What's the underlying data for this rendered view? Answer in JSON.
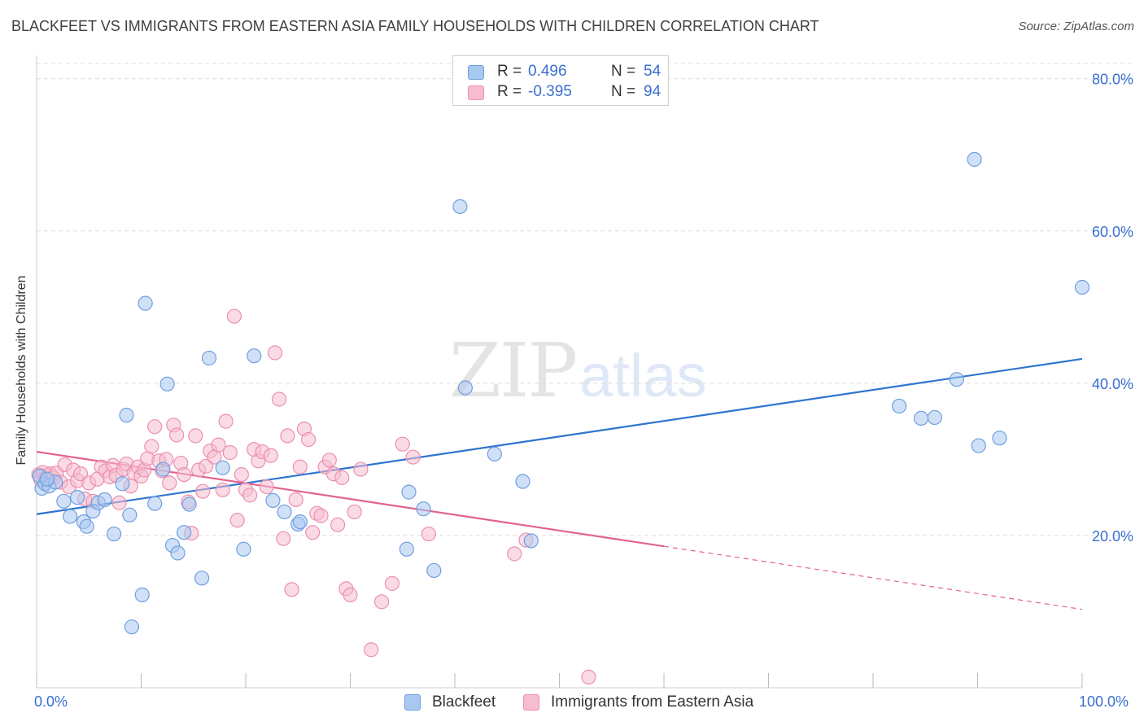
{
  "header": {
    "title": "BLACKFEET VS IMMIGRANTS FROM EASTERN ASIA FAMILY HOUSEHOLDS WITH CHILDREN CORRELATION CHART",
    "source": "Source: ZipAtlas.com"
  },
  "watermark": {
    "zip": "ZIP",
    "atlas": "atlas"
  },
  "legend_top": {
    "rows": [
      {
        "r_label": "R =",
        "r_value": "0.496",
        "n_label": "N =",
        "n_value": "54"
      },
      {
        "r_label": "R =",
        "r_value": "-0.395",
        "n_label": "N =",
        "n_value": "94"
      }
    ]
  },
  "legend_bottom": {
    "items": [
      "Blackfeet",
      "Immigrants from Eastern Asia"
    ]
  },
  "colors": {
    "blackfeet_fill": "#a9c8f0",
    "blackfeet_stroke": "#6f9fe0",
    "blackfeet_line": "#2f74d0",
    "eastern_asia_fill": "#f6bdd0",
    "eastern_asia_stroke": "#ec8fb0",
    "eastern_asia_line": "#e2628f",
    "axis_label": "#3a6fcf",
    "grid": "#dcdcdc"
  },
  "chart_data": {
    "type": "scatter",
    "title": "BLACKFEET VS IMMIGRANTS FROM EASTERN ASIA FAMILY HOUSEHOLDS WITH CHILDREN CORRELATION CHART",
    "xlabel": "",
    "ylabel": "Family Households with Children",
    "xlim": [
      0,
      100
    ],
    "ylim": [
      0,
      82
    ],
    "x_tick_labels": [
      "0.0%",
      "100.0%"
    ],
    "y_ticks": [
      20,
      40,
      60,
      80
    ],
    "y_tick_labels": [
      "20.0%",
      "40.0%",
      "60.0%",
      "80.0%"
    ],
    "grid": "horizontal dashed",
    "legend_position": "top-center and bottom-center",
    "series": [
      {
        "name": "Blackfeet",
        "r": 0.496,
        "n": 54,
        "trend": {
          "x": [
            0,
            100
          ],
          "y": [
            22.8,
            43.2
          ],
          "dashed_after": null
        },
        "points": [
          [
            0.3,
            27.8
          ],
          [
            0.5,
            26.2
          ],
          [
            0.8,
            26.8
          ],
          [
            1.2,
            26.5
          ],
          [
            1.8,
            27.0
          ],
          [
            2.6,
            24.5
          ],
          [
            3.2,
            22.5
          ],
          [
            3.9,
            25.0
          ],
          [
            4.5,
            21.8
          ],
          [
            4.8,
            21.2
          ],
          [
            5.4,
            23.2
          ],
          [
            5.9,
            24.3
          ],
          [
            6.5,
            24.7
          ],
          [
            7.4,
            20.2
          ],
          [
            8.2,
            26.8
          ],
          [
            8.6,
            35.8
          ],
          [
            8.9,
            22.7
          ],
          [
            9.1,
            8.0
          ],
          [
            10.1,
            12.2
          ],
          [
            10.4,
            50.5
          ],
          [
            11.3,
            24.2
          ],
          [
            12.1,
            28.7
          ],
          [
            12.5,
            39.9
          ],
          [
            13.0,
            18.7
          ],
          [
            13.5,
            17.7
          ],
          [
            14.1,
            20.4
          ],
          [
            14.6,
            24.1
          ],
          [
            15.8,
            14.4
          ],
          [
            16.5,
            43.3
          ],
          [
            17.8,
            28.9
          ],
          [
            19.8,
            18.2
          ],
          [
            20.8,
            43.6
          ],
          [
            22.6,
            24.6
          ],
          [
            23.7,
            23.1
          ],
          [
            25.0,
            21.5
          ],
          [
            25.2,
            21.8
          ],
          [
            35.4,
            18.2
          ],
          [
            35.6,
            25.7
          ],
          [
            37.0,
            23.5
          ],
          [
            38.0,
            15.4
          ],
          [
            40.5,
            63.2
          ],
          [
            41.0,
            39.4
          ],
          [
            43.8,
            30.7
          ],
          [
            46.5,
            27.1
          ],
          [
            47.3,
            19.3
          ],
          [
            82.5,
            37.0
          ],
          [
            84.6,
            35.4
          ],
          [
            85.9,
            35.5
          ],
          [
            88.0,
            40.5
          ],
          [
            89.7,
            69.4
          ],
          [
            90.1,
            31.8
          ],
          [
            92.1,
            32.8
          ],
          [
            100.0,
            52.6
          ],
          [
            1.0,
            27.4
          ]
        ]
      },
      {
        "name": "Immigrants from Eastern Asia",
        "r": -0.395,
        "n": 94,
        "trend": {
          "x": [
            0,
            100
          ],
          "y": [
            31.0,
            10.3
          ],
          "dashed_after": 60
        },
        "points": [
          [
            0.2,
            28.0
          ],
          [
            0.4,
            27.3
          ],
          [
            0.6,
            28.3
          ],
          [
            0.9,
            27.5
          ],
          [
            1.1,
            27.9
          ],
          [
            1.3,
            28.1
          ],
          [
            1.6,
            27.6
          ],
          [
            1.9,
            28.2
          ],
          [
            2.3,
            27.0
          ],
          [
            2.7,
            29.3
          ],
          [
            3.1,
            26.4
          ],
          [
            3.5,
            28.6
          ],
          [
            3.9,
            27.2
          ],
          [
            4.2,
            28.1
          ],
          [
            4.6,
            24.8
          ],
          [
            5.0,
            26.9
          ],
          [
            5.4,
            24.5
          ],
          [
            5.8,
            27.4
          ],
          [
            6.2,
            29.0
          ],
          [
            6.6,
            28.5
          ],
          [
            7.0,
            27.7
          ],
          [
            7.3,
            29.2
          ],
          [
            7.6,
            27.9
          ],
          [
            7.9,
            24.3
          ],
          [
            8.3,
            28.7
          ],
          [
            8.6,
            29.4
          ],
          [
            9.0,
            26.5
          ],
          [
            9.3,
            28.2
          ],
          [
            9.7,
            29.0
          ],
          [
            10.0,
            27.8
          ],
          [
            10.3,
            28.6
          ],
          [
            10.6,
            30.1
          ],
          [
            11.0,
            31.7
          ],
          [
            11.3,
            34.3
          ],
          [
            11.7,
            29.8
          ],
          [
            12.0,
            28.5
          ],
          [
            12.4,
            30.0
          ],
          [
            12.7,
            26.9
          ],
          [
            13.1,
            34.5
          ],
          [
            13.4,
            33.2
          ],
          [
            13.8,
            29.5
          ],
          [
            14.1,
            28.0
          ],
          [
            14.5,
            24.4
          ],
          [
            14.8,
            20.3
          ],
          [
            15.2,
            33.1
          ],
          [
            15.5,
            28.6
          ],
          [
            15.9,
            25.8
          ],
          [
            16.2,
            29.1
          ],
          [
            16.6,
            31.1
          ],
          [
            17.0,
            30.3
          ],
          [
            17.4,
            31.9
          ],
          [
            17.8,
            26.0
          ],
          [
            18.1,
            35.0
          ],
          [
            18.5,
            30.9
          ],
          [
            18.9,
            48.8
          ],
          [
            19.2,
            22.0
          ],
          [
            19.6,
            28.0
          ],
          [
            20.0,
            26.0
          ],
          [
            20.4,
            25.3
          ],
          [
            20.8,
            31.3
          ],
          [
            21.2,
            29.8
          ],
          [
            21.6,
            31.0
          ],
          [
            22.0,
            26.4
          ],
          [
            22.4,
            30.5
          ],
          [
            22.8,
            44.0
          ],
          [
            23.2,
            37.9
          ],
          [
            23.6,
            19.6
          ],
          [
            24.0,
            33.1
          ],
          [
            24.4,
            12.9
          ],
          [
            24.8,
            24.7
          ],
          [
            25.2,
            29.0
          ],
          [
            25.6,
            34.0
          ],
          [
            26.0,
            32.6
          ],
          [
            26.4,
            20.4
          ],
          [
            26.8,
            22.9
          ],
          [
            27.2,
            22.6
          ],
          [
            27.6,
            29.0
          ],
          [
            28.0,
            29.9
          ],
          [
            28.4,
            28.1
          ],
          [
            28.8,
            21.4
          ],
          [
            29.2,
            27.6
          ],
          [
            29.6,
            13.0
          ],
          [
            30.0,
            12.2
          ],
          [
            30.4,
            23.1
          ],
          [
            31.0,
            28.7
          ],
          [
            32.0,
            5.0
          ],
          [
            33.0,
            11.3
          ],
          [
            34.0,
            13.7
          ],
          [
            35.0,
            32.0
          ],
          [
            36.0,
            30.3
          ],
          [
            37.5,
            20.2
          ],
          [
            45.7,
            17.6
          ],
          [
            46.8,
            19.4
          ],
          [
            52.8,
            1.4
          ]
        ]
      }
    ]
  }
}
